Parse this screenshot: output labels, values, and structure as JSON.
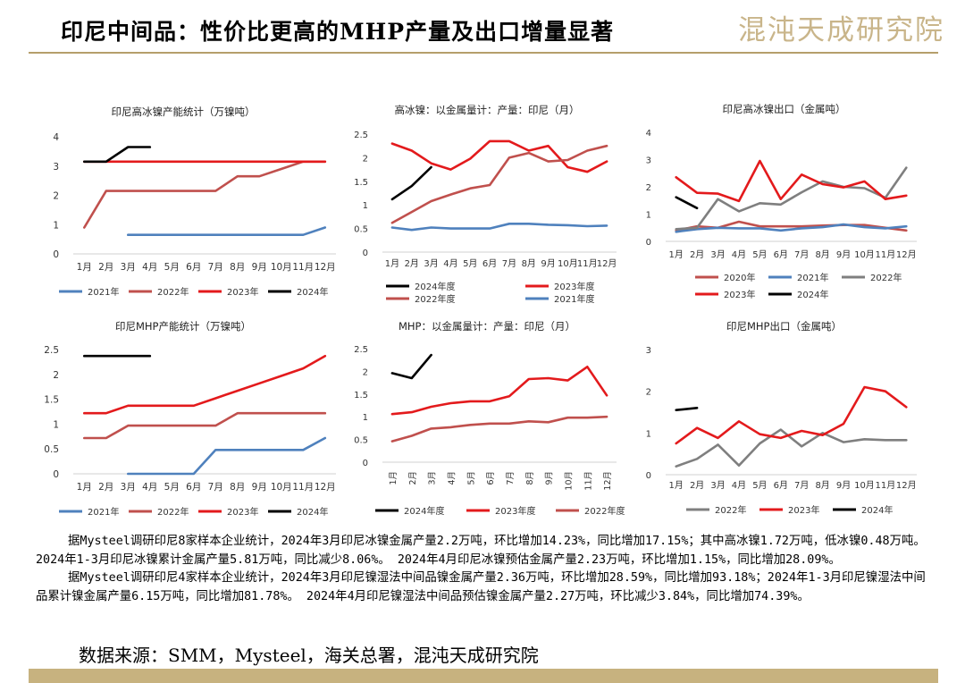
{
  "header": {
    "title": "印尼中间品：性价比更高的MHP产量及出口增量显著",
    "logo_text": "混沌天成研究院",
    "accent_color": "#b59f6b"
  },
  "chart_data": [
    {
      "id": "c1",
      "type": "line",
      "title": "印尼高冰镍产能统计（万镍吨）",
      "categories": [
        "1月",
        "2月",
        "3月",
        "4月",
        "5月",
        "6月",
        "7月",
        "8月",
        "9月",
        "10月",
        "11月",
        "12月"
      ],
      "ylim": [
        0,
        4
      ],
      "yticks": [
        "0",
        "1",
        "2",
        "3",
        "4"
      ],
      "grid": false,
      "legend": "bottom",
      "series": [
        {
          "name": "2021年",
          "color": "#4f81bd",
          "values": [
            null,
            null,
            0.65,
            0.65,
            0.65,
            0.65,
            0.65,
            0.65,
            0.65,
            0.65,
            0.65,
            0.9
          ]
        },
        {
          "name": "2022年",
          "color": "#c0504d",
          "values": [
            0.9,
            2.15,
            2.15,
            2.15,
            2.15,
            2.15,
            2.15,
            2.65,
            2.65,
            2.9,
            3.15,
            3.15
          ]
        },
        {
          "name": "2023年",
          "color": "#e31a1c",
          "values": [
            3.15,
            3.15,
            3.15,
            3.15,
            3.15,
            3.15,
            3.15,
            3.15,
            3.15,
            3.15,
            3.15,
            3.15
          ]
        },
        {
          "name": "2024年",
          "color": "#000000",
          "values": [
            3.15,
            3.15,
            3.65,
            3.65,
            null,
            null,
            null,
            null,
            null,
            null,
            null,
            null
          ]
        }
      ]
    },
    {
      "id": "c2",
      "type": "line",
      "title": "高冰镍：以金属量计：产量：印尼（月）",
      "categories": [
        "1月",
        "2月",
        "3月",
        "4月",
        "5月",
        "6月",
        "7月",
        "8月",
        "9月",
        "10月",
        "11月",
        "12月"
      ],
      "ylim": [
        0,
        2.5
      ],
      "yticks": [
        "0",
        "0.5",
        "1",
        "1.5",
        "2",
        "2.5"
      ],
      "grid": false,
      "legend": "bottom",
      "series": [
        {
          "name": "2024年度",
          "color": "#000000",
          "values": [
            1.12,
            1.4,
            1.8,
            null,
            null,
            null,
            null,
            null,
            null,
            null,
            null,
            null
          ]
        },
        {
          "name": "2023年度",
          "color": "#e31a1c",
          "values": [
            2.3,
            2.15,
            1.88,
            1.75,
            1.98,
            2.35,
            2.35,
            2.15,
            2.25,
            1.8,
            1.7,
            1.92
          ]
        },
        {
          "name": "2022年度",
          "color": "#c0504d",
          "values": [
            0.62,
            0.85,
            1.08,
            1.22,
            1.35,
            1.42,
            2.0,
            2.1,
            1.92,
            1.95,
            2.15,
            2.25
          ]
        },
        {
          "name": "2021年度",
          "color": "#4f81bd",
          "values": [
            0.52,
            0.47,
            0.52,
            0.5,
            0.5,
            0.5,
            0.6,
            0.6,
            0.58,
            0.57,
            0.55,
            0.56
          ]
        }
      ]
    },
    {
      "id": "c3",
      "type": "line",
      "title": "印尼高冰镍出口（金属吨）",
      "categories": [
        "1月",
        "2月",
        "3月",
        "4月",
        "5月",
        "6月",
        "7月",
        "8月",
        "9月",
        "10月",
        "11月",
        "12月"
      ],
      "ylim": [
        0,
        4
      ],
      "yticks": [
        "0",
        "1",
        "2",
        "3",
        "4"
      ],
      "grid": false,
      "legend": "bottom",
      "series": [
        {
          "name": "2020年",
          "color": "#c0504d",
          "values": [
            0.4,
            0.55,
            0.5,
            0.72,
            0.55,
            0.55,
            0.55,
            0.58,
            0.6,
            0.6,
            0.5,
            0.4
          ]
        },
        {
          "name": "2021年",
          "color": "#4f81bd",
          "values": [
            0.35,
            0.45,
            0.5,
            0.48,
            0.48,
            0.4,
            0.48,
            0.52,
            0.62,
            0.52,
            0.48,
            0.55
          ]
        },
        {
          "name": "2022年",
          "color": "#7f7f7f",
          "values": [
            0.45,
            0.5,
            1.55,
            1.1,
            1.4,
            1.35,
            1.8,
            2.2,
            2.0,
            1.95,
            1.6,
            2.7
          ]
        },
        {
          "name": "2023年",
          "color": "#e31a1c",
          "values": [
            2.35,
            1.78,
            1.75,
            1.48,
            2.95,
            1.55,
            2.45,
            2.1,
            1.98,
            2.2,
            1.55,
            1.68
          ]
        },
        {
          "name": "2024年",
          "color": "#000000",
          "values": [
            1.62,
            1.22,
            null,
            null,
            null,
            null,
            null,
            null,
            null,
            null,
            null,
            null
          ]
        }
      ]
    },
    {
      "id": "c4",
      "type": "line",
      "title": "印尼MHP产能统计（万镍吨）",
      "categories": [
        "1月",
        "2月",
        "3月",
        "4月",
        "5月",
        "6月",
        "7月",
        "8月",
        "9月",
        "10月",
        "11月",
        "12月"
      ],
      "ylim": [
        0,
        2.5
      ],
      "yticks": [
        "0",
        "0.5",
        "1",
        "1.5",
        "2",
        "2.5"
      ],
      "grid": false,
      "legend": "bottom",
      "series": [
        {
          "name": "2021年",
          "color": "#4f81bd",
          "values": [
            null,
            null,
            0,
            0,
            0,
            0,
            0.48,
            0.48,
            0.48,
            0.48,
            0.48,
            0.72
          ]
        },
        {
          "name": "2022年",
          "color": "#c0504d",
          "values": [
            0.72,
            0.72,
            0.97,
            0.97,
            0.97,
            0.97,
            0.97,
            1.22,
            1.22,
            1.22,
            1.22,
            1.22
          ]
        },
        {
          "name": "2023年",
          "color": "#e31a1c",
          "values": [
            1.22,
            1.22,
            1.37,
            1.37,
            1.37,
            1.37,
            1.52,
            1.67,
            1.82,
            1.97,
            2.12,
            2.37
          ]
        },
        {
          "name": "2024年",
          "color": "#000000",
          "values": [
            2.37,
            2.37,
            2.37,
            2.37,
            null,
            null,
            null,
            null,
            null,
            null,
            null,
            null
          ]
        }
      ]
    },
    {
      "id": "c5",
      "type": "line",
      "title": "MHP：以金属量计：产量：印尼（月）",
      "categories": [
        "1月",
        "2月",
        "3月",
        "4月",
        "5月",
        "6月",
        "7月",
        "8月",
        "9月",
        "10月",
        "11月",
        "12月"
      ],
      "ylim": [
        0,
        2.5
      ],
      "yticks": [
        "0",
        "0.5",
        "1",
        "1.5",
        "2",
        "2.5"
      ],
      "grid": false,
      "legend": "bottom",
      "series": [
        {
          "name": "2024年度",
          "color": "#000000",
          "values": [
            1.96,
            1.85,
            2.36,
            null,
            null,
            null,
            null,
            null,
            null,
            null,
            null,
            null
          ]
        },
        {
          "name": "2023年度",
          "color": "#e31a1c",
          "values": [
            1.06,
            1.1,
            1.22,
            1.3,
            1.34,
            1.34,
            1.45,
            1.83,
            1.85,
            1.8,
            2.1,
            1.47
          ]
        },
        {
          "name": "2022年度",
          "color": "#c0504d",
          "values": [
            0.46,
            0.58,
            0.74,
            0.77,
            0.82,
            0.85,
            0.85,
            0.9,
            0.88,
            0.98,
            0.98,
            1.0
          ]
        }
      ]
    },
    {
      "id": "c6",
      "type": "line",
      "title": "印尼MHP出口（金属吨）",
      "categories": [
        "1月",
        "2月",
        "3月",
        "4月",
        "5月",
        "6月",
        "7月",
        "8月",
        "9月",
        "10月",
        "11月",
        "12月"
      ],
      "ylim": [
        0,
        3
      ],
      "yticks": [
        "0",
        "1",
        "2",
        "3"
      ],
      "grid": false,
      "legend": "bottom",
      "series": [
        {
          "name": "2022年",
          "color": "#7f7f7f",
          "values": [
            0.2,
            0.38,
            0.72,
            0.22,
            0.75,
            1.08,
            0.68,
            1.0,
            0.78,
            0.85,
            0.83,
            0.83
          ]
        },
        {
          "name": "2023年",
          "color": "#e31a1c",
          "values": [
            0.75,
            1.12,
            0.88,
            1.28,
            0.97,
            0.88,
            1.05,
            0.95,
            1.22,
            2.1,
            2.0,
            1.62
          ]
        },
        {
          "name": "2024年",
          "color": "#000000",
          "values": [
            1.55,
            1.6,
            null,
            null,
            null,
            null,
            null,
            null,
            null,
            null,
            null,
            null
          ]
        }
      ]
    }
  ],
  "text": {
    "para1": "据Mysteel调研印尼8家样本企业统计，2024年3月印尼冰镍金属产量2.2万吨，环比增加14.23%，同比增加17.15%；其中高冰镍1.72万吨，低冰镍0.48万吨。2024年1-3月印尼冰镍累计金属产量5.81万吨，同比减少8.06%。 2024年4月印尼冰镍预估金属产量2.23万吨，环比增加1.15%，同比增加28.09%。",
    "para2": "据Mysteel调研印尼4家样本企业统计，2024年3月印尼镍湿法中间品镍金属产量2.36万吨，环比增加28.59%，同比增加93.18%；2024年1-3月印尼镍湿法中间品累计镍金属产量6.15万吨，同比增加81.78%。 2024年4月印尼镍湿法中间品预估镍金属产量2.27万吨，环比减少3.84%，同比增加74.39%。",
    "source": "数据来源：SMM，Mysteel，海关总署，混沌天成研究院"
  }
}
